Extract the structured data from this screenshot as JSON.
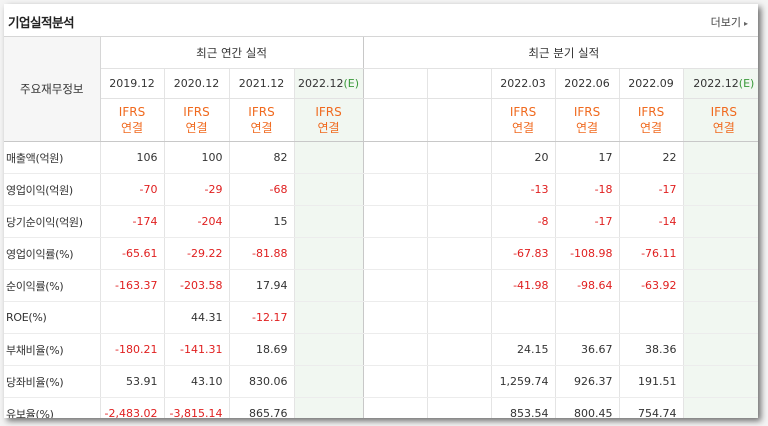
{
  "section_title": "기업실적분석",
  "more_link": "더보기",
  "header": {
    "label": "주요재무정보",
    "annual_title": "최근 연간 실적",
    "quarter_title": "최근 분기 실적",
    "annual_periods": [
      "2019.12",
      "2020.12",
      "2021.12",
      "2022.12"
    ],
    "quarter_periods": [
      "2022.03",
      "2022.06",
      "2022.09",
      "2022.12"
    ],
    "estimate_suffix": "(E)",
    "ifrs": "IFRS",
    "consolidated": "연결"
  },
  "rows": [
    {
      "label": "매출액(억원)",
      "annual": [
        "106",
        "100",
        "82",
        ""
      ],
      "quarter": [
        "20",
        "17",
        "22",
        ""
      ]
    },
    {
      "label": "영업이익(억원)",
      "annual": [
        "-70",
        "-29",
        "-68",
        ""
      ],
      "quarter": [
        "-13",
        "-18",
        "-17",
        ""
      ]
    },
    {
      "label": "당기순이익(억원)",
      "annual": [
        "-174",
        "-204",
        "15",
        ""
      ],
      "quarter": [
        "-8",
        "-17",
        "-14",
        ""
      ]
    },
    {
      "label": "영업이익률(%)",
      "annual": [
        "-65.61",
        "-29.22",
        "-81.88",
        ""
      ],
      "quarter": [
        "-67.83",
        "-108.98",
        "-76.11",
        ""
      ]
    },
    {
      "label": "순이익률(%)",
      "annual": [
        "-163.37",
        "-203.58",
        "17.94",
        ""
      ],
      "quarter": [
        "-41.98",
        "-98.64",
        "-63.92",
        ""
      ]
    },
    {
      "label": "ROE(%)",
      "annual": [
        "",
        "44.31",
        "-12.17",
        ""
      ],
      "quarter": [
        "",
        "",
        "",
        ""
      ]
    },
    {
      "label": "부채비율(%)",
      "annual": [
        "-180.21",
        "-141.31",
        "18.69",
        ""
      ],
      "quarter": [
        "24.15",
        "36.67",
        "38.36",
        ""
      ]
    },
    {
      "label": "당좌비율(%)",
      "annual": [
        "53.91",
        "43.10",
        "830.06",
        ""
      ],
      "quarter": [
        "1,259.74",
        "926.37",
        "191.51",
        ""
      ]
    },
    {
      "label": "유보율(%)",
      "annual": [
        "-2,483.02",
        "-3,815.14",
        "865.76",
        ""
      ],
      "quarter": [
        "853.54",
        "800.45",
        "754.74",
        ""
      ]
    }
  ]
}
